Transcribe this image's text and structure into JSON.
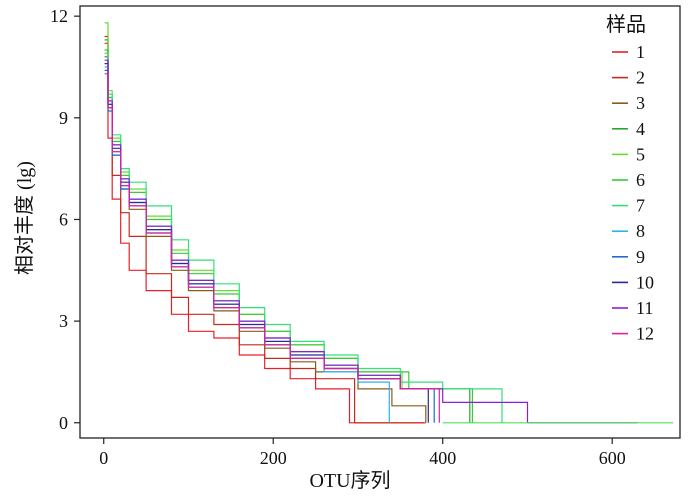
{
  "chart_data": {
    "type": "line",
    "title": "",
    "xlabel": "OTU序列",
    "ylabel": "相对丰度 (lg)",
    "xlim": [
      -28,
      680
    ],
    "ylim": [
      -0.45,
      12.3
    ],
    "xticks": [
      0,
      200,
      400,
      600
    ],
    "yticks": [
      0,
      3,
      6,
      9,
      12
    ],
    "grid": false,
    "legend": {
      "title": "样品",
      "position": "top-right"
    },
    "series": [
      {
        "name": "1",
        "color": "#e8202a",
        "x": [
          1,
          5,
          10,
          20,
          30,
          50,
          80,
          100,
          130,
          160,
          190,
          220,
          250,
          290,
          330,
          380
        ],
        "y": [
          11.2,
          8.4,
          6.6,
          5.3,
          4.5,
          3.9,
          3.2,
          2.7,
          2.5,
          2.0,
          1.6,
          1.3,
          1.0,
          0.0,
          0.0,
          0.0
        ]
      },
      {
        "name": "2",
        "color": "#c42b1c",
        "x": [
          1,
          5,
          10,
          20,
          30,
          50,
          80,
          100,
          130,
          160,
          190,
          220,
          250,
          296,
          330,
          378
        ],
        "y": [
          11.4,
          9.3,
          7.3,
          6.2,
          5.5,
          4.4,
          3.7,
          3.2,
          2.9,
          2.3,
          1.9,
          1.6,
          1.3,
          0.0,
          0.0,
          0.0
        ]
      },
      {
        "name": "3",
        "color": "#8a5a18",
        "x": [
          1,
          5,
          10,
          20,
          30,
          50,
          80,
          100,
          130,
          160,
          190,
          220,
          250,
          300,
          340,
          380
        ],
        "y": [
          10.8,
          9.3,
          7.9,
          6.9,
          6.3,
          5.5,
          4.5,
          3.9,
          3.3,
          2.7,
          2.2,
          1.8,
          1.5,
          1.0,
          0.5,
          0.0
        ]
      },
      {
        "name": "4",
        "color": "#2aa52e",
        "x": [
          1,
          5,
          10,
          20,
          30,
          50,
          80,
          100,
          130,
          160,
          190,
          220,
          260,
          300,
          350,
          432
        ],
        "y": [
          11.3,
          9.6,
          8.2,
          7.2,
          6.6,
          5.8,
          4.8,
          4.2,
          3.6,
          3.0,
          2.5,
          2.1,
          1.7,
          1.4,
          1.0,
          0.0
        ]
      },
      {
        "name": "5",
        "color": "#66dd2e",
        "x": [
          1,
          5,
          10,
          20,
          30,
          50,
          80,
          100,
          130,
          160,
          190,
          220,
          260,
          300,
          352,
          380
        ],
        "y": [
          11.8,
          9.8,
          8.4,
          7.4,
          6.9,
          6.1,
          5.1,
          4.5,
          3.9,
          3.2,
          2.7,
          2.3,
          1.9,
          1.5,
          1.0,
          1.0
        ]
      },
      {
        "name": "6",
        "color": "#39c939",
        "x": [
          1,
          5,
          10,
          20,
          30,
          50,
          80,
          100,
          130,
          160,
          190,
          220,
          260,
          300,
          360,
          435
        ],
        "y": [
          11.0,
          9.6,
          8.3,
          7.3,
          6.8,
          6.0,
          5.0,
          4.4,
          3.8,
          3.2,
          2.7,
          2.3,
          1.9,
          1.5,
          1.0,
          0.0
        ]
      },
      {
        "name": "7",
        "color": "#33e07a",
        "x": [
          1,
          5,
          10,
          20,
          30,
          50,
          80,
          100,
          130,
          160,
          190,
          220,
          260,
          300,
          350,
          400,
          470
        ],
        "y": [
          10.9,
          9.7,
          8.5,
          7.5,
          7.1,
          6.4,
          5.4,
          4.8,
          4.1,
          3.4,
          2.9,
          2.4,
          2.0,
          1.6,
          1.2,
          1.0,
          0.0
        ]
      },
      {
        "name": "8",
        "color": "#29b5e8",
        "x": [
          1,
          5,
          10,
          20,
          30,
          50,
          80,
          100,
          130,
          160,
          190,
          220,
          260,
          300,
          337
        ],
        "y": [
          10.5,
          9.4,
          8.0,
          7.0,
          6.5,
          5.7,
          4.7,
          4.1,
          3.5,
          2.8,
          2.3,
          1.9,
          1.5,
          1.2,
          0.0
        ]
      },
      {
        "name": "9",
        "color": "#1f6bd1",
        "x": [
          1,
          5,
          10,
          20,
          30,
          50,
          80,
          100,
          130,
          160,
          190,
          220,
          260,
          300,
          350,
          390
        ],
        "y": [
          10.4,
          9.2,
          7.9,
          6.9,
          6.4,
          5.6,
          4.6,
          4.0,
          3.4,
          2.8,
          2.3,
          1.9,
          1.6,
          1.3,
          1.0,
          0.0
        ]
      },
      {
        "name": "10",
        "color": "#2b2a8f",
        "x": [
          1,
          5,
          10,
          20,
          30,
          50,
          80,
          100,
          130,
          160,
          190,
          220,
          260,
          300,
          350,
          383
        ],
        "y": [
          10.6,
          9.4,
          8.1,
          7.1,
          6.5,
          5.7,
          4.7,
          4.1,
          3.5,
          2.9,
          2.4,
          2.0,
          1.6,
          1.3,
          1.0,
          0.0
        ]
      },
      {
        "name": "11",
        "color": "#8a20d4",
        "x": [
          1,
          5,
          10,
          20,
          30,
          50,
          80,
          100,
          130,
          160,
          190,
          220,
          260,
          300,
          350,
          400,
          500,
          630
        ],
        "y": [
          10.7,
          9.5,
          8.2,
          7.2,
          6.6,
          5.8,
          4.8,
          4.2,
          3.6,
          3.0,
          2.5,
          2.1,
          1.7,
          1.4,
          1.0,
          0.6,
          0.0,
          0.0
        ]
      },
      {
        "name": "12",
        "color": "#e0219a",
        "x": [
          1,
          5,
          10,
          20,
          30,
          50,
          80,
          100,
          130,
          160,
          190,
          220,
          260,
          300,
          350,
          396
        ],
        "y": [
          10.3,
          9.3,
          8.0,
          7.0,
          6.4,
          5.6,
          4.6,
          4.0,
          3.4,
          2.8,
          2.3,
          1.9,
          1.6,
          1.3,
          1.0,
          0.0
        ]
      },
      {
        "name": "",
        "color": "#4de35a",
        "x": [
          400,
          500,
          672
        ],
        "y": [
          0.0,
          0.0,
          0.0
        ]
      }
    ]
  }
}
